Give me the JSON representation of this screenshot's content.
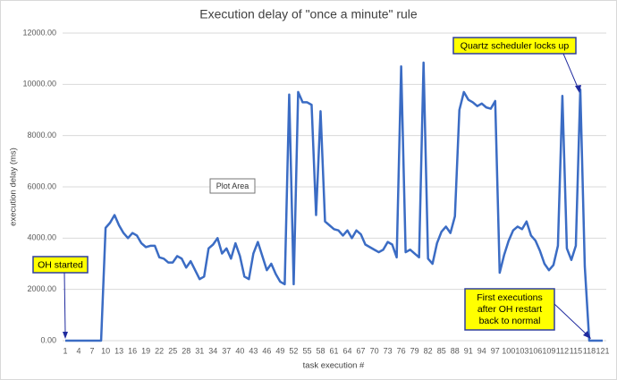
{
  "chart_data": {
    "type": "line",
    "title": "Execution delay of \"once a minute\" rule",
    "x_label": "task execution #",
    "y_label": "execution delay (ms)",
    "categories": [
      1,
      null,
      null,
      4,
      null,
      null,
      7,
      null,
      null,
      10,
      null,
      null,
      13,
      null,
      null,
      16,
      null,
      null,
      19,
      null,
      null,
      22,
      null,
      null,
      25,
      null,
      null,
      28,
      null,
      null,
      31,
      null,
      null,
      34,
      null,
      null,
      37,
      null,
      null,
      40,
      null,
      null,
      43,
      null,
      null,
      46,
      null,
      null,
      49,
      null,
      null,
      52,
      null,
      null,
      55,
      null,
      null,
      58,
      null,
      null,
      61,
      null,
      null,
      64,
      null,
      null,
      67,
      null,
      null,
      70,
      null,
      null,
      73,
      null,
      null,
      76,
      null,
      null,
      79,
      null,
      null,
      82,
      null,
      null,
      85,
      null,
      null,
      88,
      null,
      null,
      91,
      null,
      null,
      94,
      null,
      null,
      97,
      null,
      null,
      100,
      null,
      null,
      103,
      null,
      null,
      106,
      null,
      null,
      109,
      null,
      null,
      112,
      null,
      null,
      115,
      null,
      null,
      118,
      null,
      null,
      121
    ],
    "values": [
      0,
      0,
      0,
      0,
      0,
      0,
      0,
      0,
      0,
      4400,
      4600,
      4900,
      4500,
      4200,
      4000,
      4200,
      4100,
      3800,
      3650,
      3700,
      3700,
      3250,
      3200,
      3050,
      3050,
      3300,
      3200,
      2850,
      3100,
      2750,
      2400,
      2500,
      3600,
      3750,
      4000,
      3400,
      3600,
      3200,
      3800,
      3300,
      2500,
      2400,
      3400,
      3850,
      3300,
      2750,
      3000,
      2600,
      2300,
      2200,
      9600,
      2200,
      9700,
      9300,
      9300,
      9200,
      4900,
      8950,
      4650,
      4500,
      4350,
      4300,
      4100,
      4300,
      4000,
      4300,
      4150,
      3750,
      3650,
      3550,
      3450,
      3550,
      3850,
      3750,
      3250,
      10700,
      3450,
      3550,
      3400,
      3250,
      10850,
      3200,
      3000,
      3800,
      4250,
      4450,
      4200,
      4850,
      9000,
      9700,
      9400,
      9300,
      9150,
      9250,
      9100,
      9050,
      9350,
      2650,
      3350,
      3900,
      4300,
      4450,
      4350,
      4650,
      4100,
      3900,
      3500,
      3000,
      2750,
      2950,
      3700,
      9550,
      3600,
      3150,
      3700,
      9800,
      2900,
      0,
      0,
      0,
      0
    ],
    "color": "#3b6cc4",
    "ylim": [
      0,
      12000
    ],
    "yticks": [
      {
        "value": 0,
        "label": "0.00"
      },
      {
        "value": 2000,
        "label": "2000.00"
      },
      {
        "value": 4000,
        "label": "4000.00"
      },
      {
        "value": 6000,
        "label": "6000.00"
      },
      {
        "value": 8000,
        "label": "8000.00"
      },
      {
        "value": 10000,
        "label": "10000.00"
      },
      {
        "value": 12000,
        "label": "12000.00"
      }
    ],
    "grid": true,
    "annotations": [
      "Quartz scheduler locks up",
      "OH started",
      [
        "First executions",
        "after OH restart",
        "back to normal"
      ]
    ],
    "tooltip": "Plot Area"
  }
}
